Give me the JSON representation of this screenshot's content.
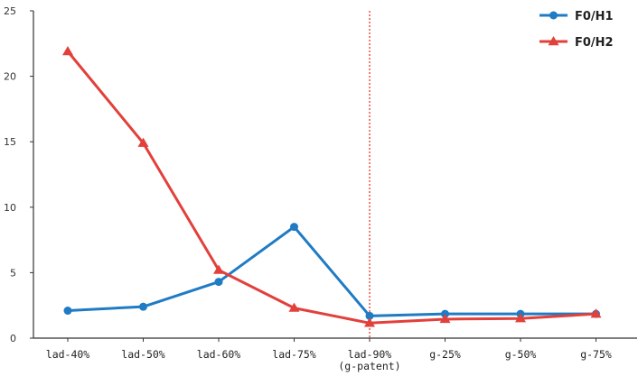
{
  "chart_data": {
    "type": "line",
    "title": "",
    "xlabel": "",
    "ylabel": "",
    "categories": [
      [
        "lad-40%"
      ],
      [
        "lad-50%"
      ],
      [
        "lad-60%"
      ],
      [
        "lad-75%"
      ],
      [
        "lad-90%",
        "(g-patent)"
      ],
      [
        "g-25%"
      ],
      [
        "g-50%"
      ],
      [
        "g-75%"
      ]
    ],
    "yticks": [
      "0",
      "5",
      "10",
      "15",
      "20",
      "25"
    ],
    "ylim": [
      0,
      25
    ],
    "grid": false,
    "legend_position": "top-right",
    "reference_line": {
      "category_index": 4,
      "color": "#e8261c",
      "style": "dotted"
    },
    "series": [
      {
        "name": "F0/H1",
        "color": "#1f7bc4",
        "marker": "circle",
        "values": [
          2.1,
          2.4,
          4.3,
          8.5,
          1.7,
          1.85,
          1.85,
          1.85
        ]
      },
      {
        "name": "F0/H2",
        "color": "#e2403b",
        "marker": "triangle",
        "values": [
          21.9,
          14.9,
          5.2,
          2.3,
          1.15,
          1.45,
          1.5,
          1.85
        ]
      }
    ]
  }
}
